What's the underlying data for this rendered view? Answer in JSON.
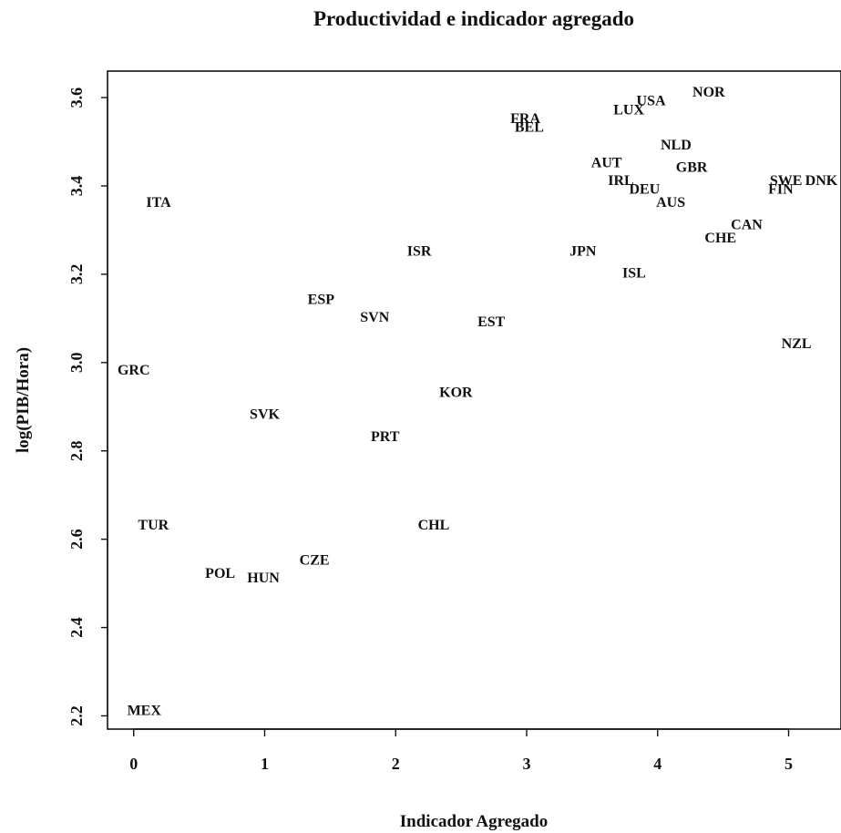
{
  "chart_data": {
    "type": "scatter",
    "title": "Productividad e indicador agregado",
    "xlabel": "Indicador Agregado",
    "ylabel": "log(PIB/Hora)",
    "xlim": [
      -0.2,
      5.4
    ],
    "ylim": [
      2.17,
      3.66
    ],
    "x_ticks": [
      0,
      1,
      2,
      3,
      4,
      5
    ],
    "y_ticks": [
      2.2,
      2.4,
      2.6,
      2.8,
      3.0,
      3.2,
      3.4,
      3.6
    ],
    "x_tick_labels": [
      "0",
      "1",
      "2",
      "3",
      "4",
      "5"
    ],
    "y_tick_labels": [
      "2.2",
      "2.4",
      "2.6",
      "2.8",
      "3.0",
      "3.2",
      "3.4",
      "3.6"
    ],
    "grid": false,
    "points": [
      {
        "label": "MEX",
        "x": 0.08,
        "y": 2.21
      },
      {
        "label": "TUR",
        "x": 0.15,
        "y": 2.63
      },
      {
        "label": "GRC",
        "x": 0.0,
        "y": 2.98
      },
      {
        "label": "ITA",
        "x": 0.19,
        "y": 3.36
      },
      {
        "label": "POL",
        "x": 0.66,
        "y": 2.52
      },
      {
        "label": "HUN",
        "x": 0.99,
        "y": 2.51
      },
      {
        "label": "SVK",
        "x": 1.0,
        "y": 2.88
      },
      {
        "label": "CZE",
        "x": 1.38,
        "y": 2.55
      },
      {
        "label": "ESP",
        "x": 1.43,
        "y": 3.14
      },
      {
        "label": "SVN",
        "x": 1.84,
        "y": 3.1
      },
      {
        "label": "PRT",
        "x": 1.92,
        "y": 2.83
      },
      {
        "label": "ISR",
        "x": 2.18,
        "y": 3.25
      },
      {
        "label": "CHL",
        "x": 2.29,
        "y": 2.63
      },
      {
        "label": "KOR",
        "x": 2.46,
        "y": 2.93
      },
      {
        "label": "EST",
        "x": 2.73,
        "y": 3.09
      },
      {
        "label": "FRA",
        "x": 2.99,
        "y": 3.55
      },
      {
        "label": "BEL",
        "x": 3.02,
        "y": 3.53
      },
      {
        "label": "JPN",
        "x": 3.43,
        "y": 3.25
      },
      {
        "label": "AUT",
        "x": 3.61,
        "y": 3.45
      },
      {
        "label": "IRL",
        "x": 3.72,
        "y": 3.41
      },
      {
        "label": "LUX",
        "x": 3.78,
        "y": 3.57
      },
      {
        "label": "ISL",
        "x": 3.82,
        "y": 3.2
      },
      {
        "label": "DEU",
        "x": 3.9,
        "y": 3.39
      },
      {
        "label": "USA",
        "x": 3.95,
        "y": 3.59
      },
      {
        "label": "AUS",
        "x": 4.1,
        "y": 3.36
      },
      {
        "label": "NLD",
        "x": 4.14,
        "y": 3.49
      },
      {
        "label": "GBR",
        "x": 4.26,
        "y": 3.44
      },
      {
        "label": "NOR",
        "x": 4.39,
        "y": 3.61
      },
      {
        "label": "CHE",
        "x": 4.48,
        "y": 3.28
      },
      {
        "label": "CAN",
        "x": 4.68,
        "y": 3.31
      },
      {
        "label": "SWE",
        "x": 4.98,
        "y": 3.41
      },
      {
        "label": "FIN",
        "x": 4.94,
        "y": 3.39
      },
      {
        "label": "DNK",
        "x": 5.25,
        "y": 3.41
      },
      {
        "label": "NZL",
        "x": 5.06,
        "y": 3.04
      }
    ]
  }
}
